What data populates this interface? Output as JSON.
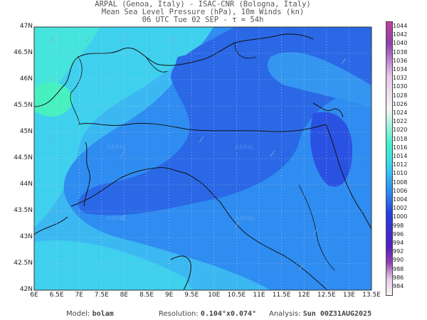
{
  "header": {
    "line1": "ARPAL (Genoa, Italy)  -  ISAC-CNR (Bologna, Italy)",
    "line2": "Mean Sea Level Pressure (hPa), 10m Winds (kn)",
    "line3": "06 UTC Tue 02 SEP  -  τ = 54h"
  },
  "map": {
    "lat_labels": [
      "47N",
      "46.5N",
      "46N",
      "45.5N",
      "45N",
      "44.5N",
      "44N",
      "43.5N",
      "43N",
      "42.5N",
      "42N"
    ],
    "lon_labels": [
      "6E",
      "6.5E",
      "7E",
      "7.5E",
      "8E",
      "8.5E",
      "9E",
      "9.5E",
      "10E",
      "10.5E",
      "11E",
      "11.5E",
      "12E",
      "12.5E",
      "13E",
      "13.5E"
    ],
    "watermark": "ARPAL"
  },
  "colorbar": {
    "labels": [
      "1044",
      "1042",
      "1040",
      "1038",
      "1036",
      "1034",
      "1032",
      "1030",
      "1028",
      "1026",
      "1024",
      "1022",
      "1020",
      "1018",
      "1016",
      "1014",
      "1012",
      "1010",
      "1008",
      "1006",
      "1004",
      "1002",
      "1000",
      "998",
      "996",
      "994",
      "992",
      "990",
      "988",
      "986",
      "984"
    ],
    "colors": {
      "very_low": "#f4f4f4",
      "low_pink": "#e8c8e8",
      "mid_purple": "#9040b0",
      "p1000": "#3a2fd0",
      "p1004": "#2540e0",
      "p1006": "#2a6ae8",
      "p1008": "#2f8af0",
      "p1010": "#33aaf0",
      "p1012": "#3bc8f0",
      "p1014": "#3fe0e0",
      "p1016": "#40f0c8",
      "high": "#c040a0"
    }
  },
  "footer": {
    "model_label": "Model:",
    "model_value": "bolam",
    "resolution_label": "Resolution:",
    "resolution_value": "0.104°x0.074°",
    "analysis_label": "Analysis:",
    "analysis_value": "Sun 00Z31AUG2025"
  }
}
